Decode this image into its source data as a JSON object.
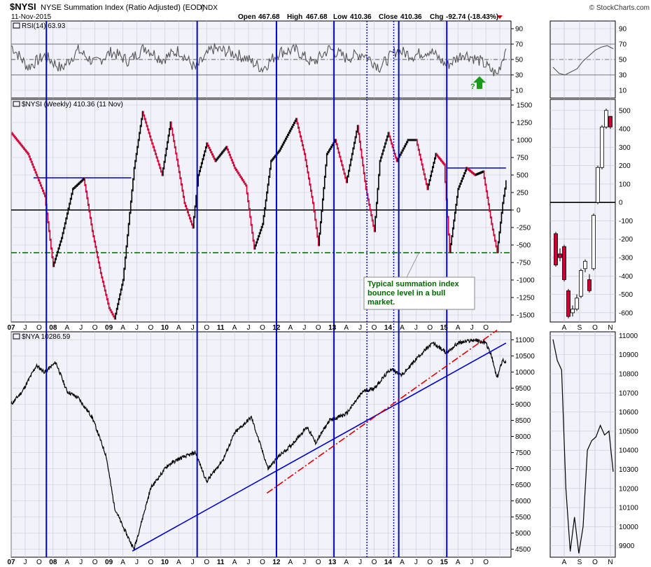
{
  "header": {
    "symbol": "$NYSI",
    "description": "NYSE Summation Index (Ratio Adjusted) (EOD)",
    "exchange": "INDX",
    "date": "11-Nov-2015",
    "branding": "© StockCharts.com",
    "open_label": "Open",
    "open": "467.68",
    "high_label": "High",
    "high": "467.68",
    "low_label": "Low",
    "low": "410.36",
    "close_label": "Close",
    "close": "410.36",
    "chg_label": "Chg",
    "chg": "-92.74 (-18.43%)"
  },
  "panels": {
    "rsi_label": "RSI(14) 63.93",
    "nysi_label": "$NYSI (Weekly) 410.36 (11 Nov)",
    "nya_label": "$NYA 10286.59"
  },
  "annotation": {
    "lines": [
      "Typical summation index",
      "bounce level in a bull",
      "market."
    ],
    "question_mark": "?"
  },
  "colors": {
    "panel_bg": "#f2f2fa",
    "grid": "#c8c8d8",
    "blue_line": "#0000cc",
    "green_dash": "#006600",
    "red_dash": "#e00000",
    "price_black": "#000000",
    "price_red": "#cc0033",
    "rsi_line": "#555555",
    "arrow_green": "#1a9a1a",
    "annotation_text": "#006600"
  },
  "chart_data": [
    {
      "type": "line",
      "name": "RSI(14)",
      "y_ticks": [
        10,
        30,
        50,
        70,
        90
      ],
      "ylim": [
        0,
        100
      ],
      "reference_lines": [
        30,
        50,
        70
      ],
      "last_value": 63.93,
      "x": [
        2007.0,
        2007.3,
        2007.6,
        2007.9,
        2008.2,
        2008.5,
        2008.8,
        2009.1,
        2009.4,
        2009.7,
        2010.0,
        2010.3,
        2010.6,
        2010.9,
        2011.2,
        2011.5,
        2011.8,
        2012.1,
        2012.4,
        2012.7,
        2013.0,
        2013.3,
        2013.6,
        2013.9,
        2014.2,
        2014.5,
        2014.8,
        2015.1,
        2015.4,
        2015.7,
        2015.86
      ],
      "values": [
        68,
        40,
        55,
        38,
        62,
        45,
        60,
        48,
        66,
        50,
        62,
        38,
        64,
        60,
        52,
        38,
        60,
        62,
        45,
        64,
        52,
        58,
        40,
        62,
        55,
        62,
        42,
        58,
        48,
        30,
        63.9
      ]
    },
    {
      "type": "bar",
      "name": "$NYSI (Weekly)",
      "y_ticks": [
        -1500,
        -1250,
        -1000,
        -750,
        -500,
        -250,
        0,
        250,
        500,
        750,
        1000,
        1250,
        1500
      ],
      "ylim": [
        -1600,
        1580
      ],
      "reference_lines": [
        {
          "value": 0,
          "style": "solid"
        },
        {
          "value": -610,
          "style": "dash-dot"
        }
      ],
      "x_ticks": [
        "07",
        "J",
        "O",
        "08",
        "A",
        "J",
        "O",
        "09",
        "A",
        "J",
        "O",
        "10",
        "A",
        "J",
        "O",
        "11",
        "A",
        "J",
        "O",
        "12",
        "A",
        "J",
        "O",
        "13",
        "A",
        "J",
        "O",
        "14",
        "A",
        "J",
        "O",
        "15",
        "A",
        "J",
        "O"
      ],
      "last_value": 410.36,
      "x": [
        2007.0,
        2007.3,
        2007.45,
        2007.6,
        2007.75,
        2007.9,
        2008.1,
        2008.3,
        2008.45,
        2008.6,
        2008.75,
        2008.85,
        2009.0,
        2009.2,
        2009.35,
        2009.5,
        2009.7,
        2009.85,
        2010.1,
        2010.25,
        2010.35,
        2010.5,
        2010.65,
        2010.85,
        2011.0,
        2011.2,
        2011.35,
        2011.5,
        2011.65,
        2011.8,
        2012.1,
        2012.25,
        2012.4,
        2012.5,
        2012.65,
        2012.8,
        2013.0,
        2013.2,
        2013.35,
        2013.5,
        2013.6,
        2013.75,
        2013.9,
        2014.1,
        2014.25,
        2014.45,
        2014.6,
        2014.75,
        2014.85,
        2015.0,
        2015.15,
        2015.3,
        2015.45,
        2015.6,
        2015.7,
        2015.8,
        2015.86
      ],
      "values": [
        1100,
        800,
        500,
        200,
        -800,
        -400,
        300,
        450,
        -300,
        -900,
        -1400,
        -1550,
        -1000,
        600,
        1400,
        1000,
        500,
        1250,
        100,
        -250,
        500,
        950,
        700,
        900,
        600,
        350,
        -550,
        -200,
        700,
        850,
        1300,
        800,
        100,
        -500,
        800,
        1000,
        400,
        1200,
        300,
        -300,
        700,
        1100,
        700,
        1000,
        1000,
        300,
        800,
        650,
        -600,
        300,
        600,
        500,
        550,
        -200,
        -600,
        100,
        410
      ]
    },
    {
      "type": "line",
      "name": "$NYA",
      "y_ticks": [
        4500,
        5000,
        5500,
        6000,
        6500,
        7000,
        7500,
        8000,
        8500,
        9000,
        9500,
        10000,
        10500,
        11000
      ],
      "ylim": [
        4250,
        11250
      ],
      "last_value": 10286.59,
      "x": [
        2007.0,
        2007.2,
        2007.45,
        2007.6,
        2007.8,
        2008.0,
        2008.2,
        2008.45,
        2008.7,
        2008.85,
        2009.0,
        2009.2,
        2009.5,
        2009.8,
        2010.0,
        2010.3,
        2010.5,
        2010.8,
        2011.0,
        2011.3,
        2011.6,
        2011.8,
        2012.0,
        2012.3,
        2012.45,
        2012.7,
        2013.0,
        2013.3,
        2013.5,
        2013.8,
        2014.0,
        2014.3,
        2014.55,
        2014.8,
        2015.0,
        2015.3,
        2015.5,
        2015.6,
        2015.7,
        2015.8,
        2015.86
      ],
      "values": [
        9000,
        9400,
        10200,
        10000,
        10300,
        9400,
        9200,
        8600,
        7400,
        5800,
        5200,
        4500,
        6400,
        7100,
        7300,
        7500,
        6600,
        7300,
        8100,
        8600,
        7000,
        7400,
        7700,
        8300,
        7800,
        8500,
        8700,
        9400,
        9500,
        10100,
        9900,
        10500,
        10900,
        10600,
        10900,
        11000,
        10900,
        10500,
        9800,
        10400,
        10287
      ]
    },
    {
      "type": "table",
      "name": "trendlines",
      "lines": [
        {
          "color": "blue",
          "style": "solid",
          "from": [
            2009.17,
            4440
          ],
          "to": [
            2015.86,
            10900
          ]
        },
        {
          "color": "red",
          "style": "dash-dot",
          "from": [
            2011.58,
            6240
          ],
          "to": [
            2015.7,
            11300
          ]
        }
      ],
      "vertical_lines_years": [
        2007.63,
        2010.33,
        2011.75,
        2012.78,
        2013.37,
        2013.85,
        2013.94,
        2014.8
      ],
      "nysi_horizontal_segments": [
        {
          "from": 2007.4,
          "to": 2009.15,
          "value": 460
        },
        {
          "from": 2014.8,
          "to": 2015.86,
          "value": 600
        }
      ]
    },
    {
      "type": "line",
      "name": "RSI(14) zoom",
      "y_ticks": [
        10,
        30,
        50,
        70,
        90
      ],
      "x": [
        0,
        1,
        2,
        3,
        4,
        5,
        6,
        7,
        8,
        9,
        10
      ],
      "values": [
        40,
        32,
        30,
        34,
        38,
        48,
        55,
        62,
        66,
        68,
        64
      ]
    },
    {
      "type": "bar",
      "name": "$NYSI zoom",
      "y_ticks": [
        -600,
        -500,
        -400,
        -300,
        -200,
        -100,
        0,
        100,
        200,
        300,
        400,
        500
      ],
      "ylim": [
        -650,
        560
      ],
      "x_ticks": [
        "A",
        "S",
        "O",
        "N"
      ],
      "bars": [
        {
          "o": -170,
          "c": -340,
          "h": -160,
          "l": -350
        },
        {
          "o": -280,
          "c": -300,
          "h": -250,
          "l": -320
        },
        {
          "o": -240,
          "c": -420,
          "h": -230,
          "l": -430
        },
        {
          "o": -480,
          "c": -620,
          "h": -470,
          "l": -630
        },
        {
          "o": -600,
          "c": -580,
          "h": -560,
          "l": -620
        },
        {
          "o": -580,
          "c": -520,
          "h": -500,
          "l": -590
        },
        {
          "o": -510,
          "c": -370,
          "h": -360,
          "l": -520
        },
        {
          "o": -360,
          "c": -320,
          "h": -310,
          "l": -380
        },
        {
          "o": -420,
          "c": -480,
          "h": -390,
          "l": -490
        },
        {
          "o": -360,
          "c": -70,
          "h": -60,
          "l": -370
        },
        {
          "o": 0,
          "c": 190,
          "h": 200,
          "l": -10
        },
        {
          "o": 190,
          "c": 410,
          "h": 420,
          "l": 180
        },
        {
          "o": 410,
          "c": 500,
          "h": 510,
          "l": 400
        },
        {
          "o": 468,
          "c": 410,
          "h": 468,
          "l": 400
        }
      ]
    },
    {
      "type": "line",
      "name": "$NYA zoom",
      "y_ticks": [
        9900,
        10000,
        10100,
        10200,
        10300,
        10400,
        10500,
        10600,
        10700,
        10800,
        10900,
        11000
      ],
      "ylim": [
        9840,
        11020
      ],
      "x_ticks": [
        "A",
        "S",
        "O",
        "N"
      ],
      "x": [
        0,
        1,
        2,
        3,
        4,
        5,
        6,
        7,
        8,
        9,
        10,
        11,
        12,
        13,
        14
      ],
      "values": [
        10980,
        10870,
        10820,
        10200,
        9870,
        10050,
        9860,
        10000,
        10400,
        10450,
        10470,
        10530,
        10480,
        10500,
        10287
      ]
    }
  ]
}
